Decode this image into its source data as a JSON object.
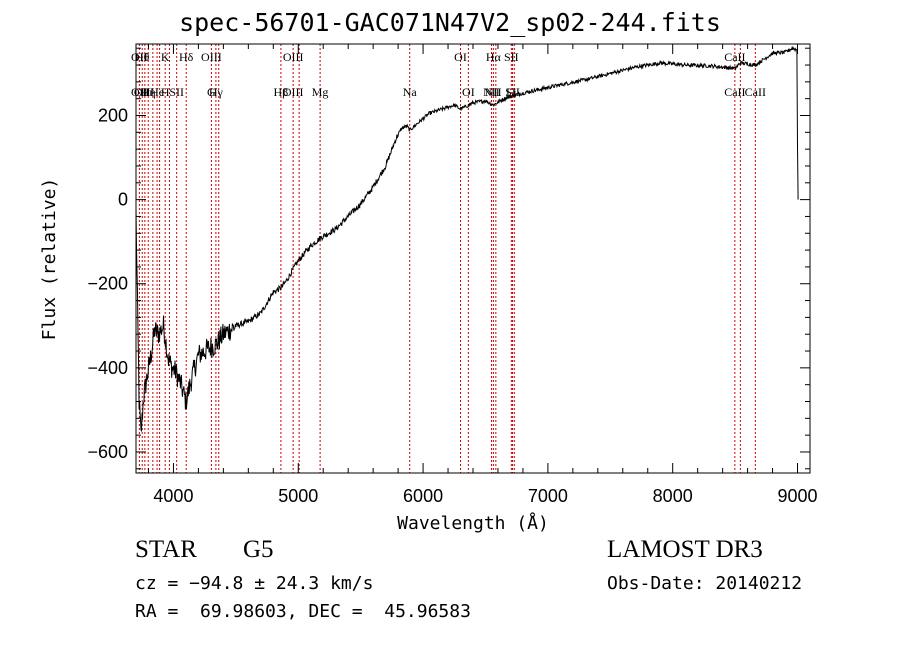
{
  "chart_data": {
    "type": "line",
    "title": "spec-56701-GAC071N47V2_sp02-244.fits",
    "xlabel": "Wavelength (Å)",
    "ylabel": "Flux (relative)",
    "xlim": [
      3700,
      9100
    ],
    "ylim": [
      -650,
      370
    ],
    "xticks": [
      4000,
      5000,
      6000,
      7000,
      8000,
      9000
    ],
    "yticks": [
      -600,
      -400,
      -200,
      0,
      200
    ],
    "line_color": "#000000",
    "marker_color": "#cc0000",
    "spectrum_anchors": {
      "x": [
        3700,
        3712,
        3725,
        3740,
        3760,
        3790,
        3820,
        3850,
        3880,
        3920,
        3960,
        3990,
        4020,
        4060,
        4100,
        4150,
        4200,
        4250,
        4300,
        4340,
        4400,
        4500,
        4600,
        4700,
        4800,
        4861,
        4900,
        5000,
        5100,
        5183,
        5300,
        5400,
        5500,
        5600,
        5700,
        5790,
        5830,
        5870,
        5893,
        5950,
        6050,
        6150,
        6250,
        6300,
        6400,
        6500,
        6563,
        6650,
        6750,
        6900,
        7100,
        7300,
        7500,
        7700,
        7900,
        8100,
        8300,
        8500,
        8542,
        8662,
        8800,
        8900,
        8960,
        8995,
        9000,
        9005
      ],
      "y": [
        -30,
        -250,
        -480,
        -560,
        -470,
        -420,
        -370,
        -310,
        -320,
        -300,
        -380,
        -400,
        -410,
        -440,
        -480,
        -420,
        -370,
        -360,
        -350,
        -345,
        -320,
        -300,
        -290,
        -270,
        -220,
        -210,
        -195,
        -145,
        -110,
        -90,
        -70,
        -40,
        -10,
        30,
        80,
        150,
        170,
        175,
        165,
        180,
        205,
        215,
        225,
        215,
        230,
        235,
        225,
        240,
        250,
        260,
        273,
        285,
        300,
        315,
        325,
        320,
        318,
        312,
        325,
        320,
        348,
        350,
        360,
        356,
        130,
        0
      ]
    },
    "lines": [
      {
        "wl": 3727,
        "top": "OII",
        "bottom": "OII"
      },
      {
        "wl": 3750,
        "top": "Hθ",
        "bottom": "OII"
      },
      {
        "wl": 3771,
        "top": "",
        "bottom": ""
      },
      {
        "wl": 3798,
        "top": "",
        "bottom": "Hη"
      },
      {
        "wl": 3835,
        "top": "",
        "bottom": ""
      },
      {
        "wl": 3869,
        "top": "",
        "bottom": "He"
      },
      {
        "wl": 3889,
        "top": "",
        "bottom": ""
      },
      {
        "wl": 3934,
        "top": "K",
        "bottom": "H"
      },
      {
        "wl": 3968,
        "top": "",
        "bottom": ""
      },
      {
        "wl": 4026,
        "top": "",
        "bottom": "SII"
      },
      {
        "wl": 4102,
        "top": "Hδ",
        "bottom": ""
      },
      {
        "wl": 4304,
        "top": "OIII",
        "bottom": "G"
      },
      {
        "wl": 4340,
        "top": "",
        "bottom": "Hγ"
      },
      {
        "wl": 4363,
        "top": "",
        "bottom": ""
      },
      {
        "wl": 4861,
        "top": "",
        "bottom": "Hβ"
      },
      {
        "wl": 4959,
        "top": "OIII",
        "bottom": "OIII"
      },
      {
        "wl": 5007,
        "top": "",
        "bottom": ""
      },
      {
        "wl": 5175,
        "top": "",
        "bottom": "Mg"
      },
      {
        "wl": 5893,
        "top": "",
        "bottom": "Na"
      },
      {
        "wl": 6300,
        "top": "OI",
        "bottom": ""
      },
      {
        "wl": 6363,
        "top": "",
        "bottom": "OI"
      },
      {
        "wl": 6548,
        "top": "",
        "bottom": "NII"
      },
      {
        "wl": 6563,
        "top": "Hα",
        "bottom": "NII"
      },
      {
        "wl": 6583,
        "top": "",
        "bottom": ""
      },
      {
        "wl": 6707,
        "top": "SII",
        "bottom": "Li"
      },
      {
        "wl": 6717,
        "top": "",
        "bottom": "SII"
      },
      {
        "wl": 6731,
        "top": "",
        "bottom": ""
      },
      {
        "wl": 8498,
        "top": "CaII",
        "bottom": "CaII"
      },
      {
        "wl": 8542,
        "top": "",
        "bottom": ""
      },
      {
        "wl": 8662,
        "top": "",
        "bottom": "CaII"
      }
    ]
  },
  "info": {
    "object_class": "STAR",
    "subclass": "G5",
    "cz": "cz = −94.8 ± 24.3 km/s",
    "radec": "RA =  69.98603, DEC =  45.96583",
    "survey": "LAMOST DR3",
    "obs_date": "Obs-Date: 20140212"
  }
}
